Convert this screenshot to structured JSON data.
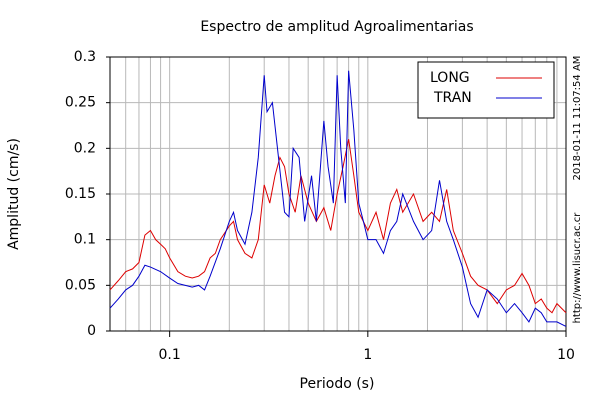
{
  "chart_data": {
    "type": "line",
    "title": "Espectro de amplitud Agroalimentarias",
    "x_label": "Periodo (s)",
    "y_label": "Amplitud (cm/s)",
    "side_notes": [
      "2018-01-11 11:07:54 AM",
      "http://www.lisucr.ac.cr"
    ],
    "log_x": true,
    "grid": true,
    "legend": "top-right",
    "xlim": [
      0.05,
      10
    ],
    "ylim": [
      0,
      0.3
    ],
    "xticks": [
      0.1,
      1,
      10
    ],
    "x_minor_ticks": [
      0.06,
      0.07,
      0.08,
      0.09,
      0.2,
      0.3,
      0.4,
      0.5,
      0.6,
      0.7,
      0.8,
      0.9,
      2,
      3,
      4,
      5,
      6,
      7,
      8,
      9
    ],
    "yticks": [
      0,
      0.05,
      0.1,
      0.15,
      0.2,
      0.25,
      0.3
    ],
    "series": [
      {
        "name": "LONG",
        "color": "#dd0000",
        "x": [
          0.05,
          0.055,
          0.06,
          0.065,
          0.07,
          0.075,
          0.08,
          0.085,
          0.09,
          0.095,
          0.1,
          0.11,
          0.12,
          0.13,
          0.14,
          0.15,
          0.16,
          0.17,
          0.18,
          0.2,
          0.21,
          0.22,
          0.24,
          0.26,
          0.28,
          0.3,
          0.32,
          0.34,
          0.36,
          0.38,
          0.4,
          0.43,
          0.46,
          0.5,
          0.55,
          0.6,
          0.65,
          0.7,
          0.75,
          0.8,
          0.85,
          0.9,
          1.0,
          1.1,
          1.2,
          1.3,
          1.4,
          1.5,
          1.7,
          1.9,
          2.1,
          2.3,
          2.5,
          2.7,
          3.0,
          3.3,
          3.6,
          4.0,
          4.5,
          5.0,
          5.5,
          6.0,
          6.5,
          7.0,
          7.5,
          8.0,
          8.5,
          9.0,
          10
        ],
        "values": [
          0.045,
          0.055,
          0.065,
          0.068,
          0.075,
          0.105,
          0.11,
          0.1,
          0.095,
          0.09,
          0.08,
          0.065,
          0.06,
          0.058,
          0.06,
          0.065,
          0.08,
          0.085,
          0.1,
          0.115,
          0.12,
          0.1,
          0.085,
          0.08,
          0.1,
          0.16,
          0.14,
          0.17,
          0.19,
          0.18,
          0.15,
          0.13,
          0.17,
          0.14,
          0.12,
          0.135,
          0.11,
          0.15,
          0.18,
          0.21,
          0.17,
          0.13,
          0.11,
          0.13,
          0.1,
          0.14,
          0.155,
          0.13,
          0.15,
          0.12,
          0.13,
          0.12,
          0.155,
          0.11,
          0.085,
          0.06,
          0.05,
          0.045,
          0.03,
          0.045,
          0.05,
          0.063,
          0.05,
          0.03,
          0.035,
          0.025,
          0.02,
          0.03,
          0.02
        ]
      },
      {
        "name": "TRAN",
        "color": "#0000cc",
        "x": [
          0.05,
          0.055,
          0.06,
          0.065,
          0.07,
          0.075,
          0.08,
          0.09,
          0.1,
          0.11,
          0.12,
          0.13,
          0.14,
          0.15,
          0.16,
          0.18,
          0.2,
          0.21,
          0.22,
          0.24,
          0.26,
          0.28,
          0.3,
          0.31,
          0.33,
          0.35,
          0.38,
          0.4,
          0.42,
          0.45,
          0.48,
          0.52,
          0.55,
          0.6,
          0.63,
          0.67,
          0.7,
          0.73,
          0.77,
          0.8,
          0.85,
          0.9,
          0.95,
          1.0,
          1.1,
          1.2,
          1.3,
          1.4,
          1.5,
          1.7,
          1.9,
          2.1,
          2.3,
          2.5,
          2.7,
          3.0,
          3.3,
          3.6,
          4.0,
          4.5,
          5.0,
          5.5,
          6.0,
          6.5,
          7.0,
          7.5,
          8.0,
          9.0,
          10
        ],
        "values": [
          0.025,
          0.035,
          0.045,
          0.05,
          0.06,
          0.072,
          0.07,
          0.065,
          0.058,
          0.052,
          0.05,
          0.048,
          0.05,
          0.045,
          0.06,
          0.09,
          0.12,
          0.13,
          0.11,
          0.095,
          0.13,
          0.19,
          0.28,
          0.24,
          0.25,
          0.2,
          0.13,
          0.125,
          0.2,
          0.19,
          0.12,
          0.17,
          0.12,
          0.23,
          0.18,
          0.14,
          0.28,
          0.2,
          0.14,
          0.285,
          0.22,
          0.14,
          0.12,
          0.1,
          0.1,
          0.085,
          0.11,
          0.12,
          0.15,
          0.12,
          0.1,
          0.11,
          0.165,
          0.12,
          0.1,
          0.07,
          0.03,
          0.015,
          0.045,
          0.035,
          0.02,
          0.03,
          0.02,
          0.01,
          0.025,
          0.02,
          0.01,
          0.01,
          0.005
        ]
      }
    ]
  }
}
